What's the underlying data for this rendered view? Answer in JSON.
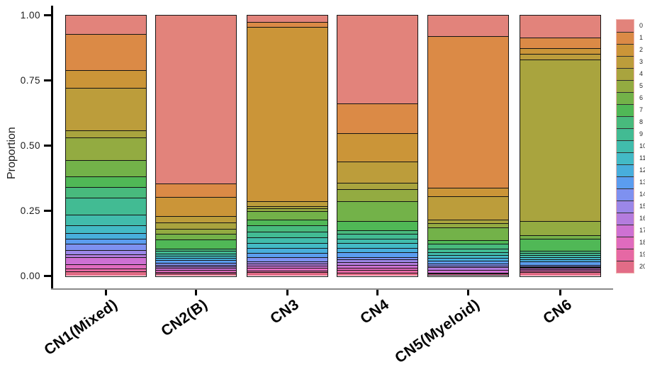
{
  "figure": {
    "ylabel": "Proportion",
    "yticks": [
      {
        "label": "1.00",
        "value": 1.0
      },
      {
        "label": "0.75",
        "value": 0.75
      },
      {
        "label": "0.50",
        "value": 0.5
      },
      {
        "label": "0.25",
        "value": 0.25
      },
      {
        "label": "0.00",
        "value": 0.0
      }
    ]
  },
  "chart_data": {
    "type": "bar",
    "stacked": true,
    "title": "",
    "xlabel": "",
    "ylabel": "Proportion",
    "ylim": [
      0,
      1
    ],
    "grid": false,
    "legend_position": "right",
    "legend_labels": [
      "0",
      "1",
      "2",
      "3",
      "4",
      "5",
      "6",
      "7",
      "8",
      "9",
      "10",
      "11",
      "12",
      "13",
      "14",
      "15",
      "16",
      "17",
      "18",
      "19",
      "20"
    ],
    "categories": [
      "CN1(Mixed)",
      "CN2(B)",
      "CN3",
      "CN4",
      "CN5(Myeloid)",
      "CN6"
    ],
    "colors": [
      "#E2837B",
      "#DB8A46",
      "#CB9538",
      "#BC9D3B",
      "#A9A43E",
      "#93AB41",
      "#73B249",
      "#50B856",
      "#48BA7D",
      "#42BB93",
      "#41BCAC",
      "#43BAC6",
      "#48AEDC",
      "#5B9DEF",
      "#7E91F0",
      "#9B87E8",
      "#B47CDE",
      "#CE71D3",
      "#E06BBE",
      "#E668A4",
      "#E26C87"
    ],
    "series": [
      {
        "name": "0",
        "values": [
          0.07,
          0.645,
          0.025,
          0.338,
          0.078,
          0.085
        ]
      },
      {
        "name": "1",
        "values": [
          0.14,
          0.054,
          0.019,
          0.114,
          0.585,
          0.041
        ]
      },
      {
        "name": "2",
        "values": [
          0.068,
          0.073,
          0.67,
          0.109,
          0.032,
          0.021
        ]
      },
      {
        "name": "3",
        "values": [
          0.163,
          0.025,
          0.019,
          0.082,
          0.091,
          0.022
        ]
      },
      {
        "name": "4",
        "values": [
          0.027,
          0.025,
          0.009,
          0.024,
          0.014,
          0.622
        ]
      },
      {
        "name": "5",
        "values": [
          0.087,
          0.018,
          0.011,
          0.047,
          0.014,
          0.054
        ]
      },
      {
        "name": "6",
        "values": [
          0.063,
          0.023,
          0.032,
          0.077,
          0.05,
          0.014
        ]
      },
      {
        "name": "7",
        "values": [
          0.041,
          0.033,
          0.023,
          0.036,
          0.014,
          0.045
        ]
      },
      {
        "name": "8",
        "values": [
          0.041,
          0.01,
          0.023,
          0.014,
          0.018,
          0.009
        ]
      },
      {
        "name": "9",
        "values": [
          0.065,
          0.01,
          0.023,
          0.019,
          0.015,
          0.008
        ]
      },
      {
        "name": "10",
        "values": [
          0.041,
          0.008,
          0.021,
          0.016,
          0.01,
          0.008
        ]
      },
      {
        "name": "11",
        "values": [
          0.03,
          0.008,
          0.02,
          0.019,
          0.011,
          0.008
        ]
      },
      {
        "name": "12",
        "values": [
          0.022,
          0.008,
          0.018,
          0.016,
          0.011,
          0.008
        ]
      },
      {
        "name": "13",
        "values": [
          0.019,
          0.012,
          0.018,
          0.019,
          0.012,
          0.016
        ]
      },
      {
        "name": "14",
        "values": [
          0.027,
          0.008,
          0.014,
          0.008,
          0.007,
          0.005
        ]
      },
      {
        "name": "15",
        "values": [
          0.016,
          0.006,
          0.009,
          0.011,
          0.006,
          0.003
        ]
      },
      {
        "name": "16",
        "values": [
          0.011,
          0.006,
          0.009,
          0.011,
          0.01,
          0.003
        ]
      },
      {
        "name": "17",
        "values": [
          0.027,
          0.008,
          0.009,
          0.01,
          0.011,
          0.005
        ]
      },
      {
        "name": "18",
        "values": [
          0.016,
          0.008,
          0.009,
          0.01,
          0.004,
          0.005
        ]
      },
      {
        "name": "19",
        "values": [
          0.011,
          0.006,
          0.005,
          0.01,
          0.004,
          0.005
        ]
      },
      {
        "name": "20",
        "values": [
          0.015,
          0.006,
          0.014,
          0.01,
          0.003,
          0.013
        ]
      }
    ]
  }
}
